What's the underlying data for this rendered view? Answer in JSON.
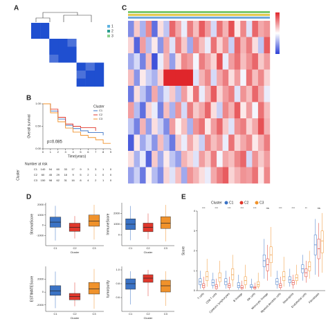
{
  "chart_data": [
    {
      "type": "heatmap",
      "label": "A",
      "zlim": [
        0,
        1
      ],
      "colors": [
        "#ffffff",
        "#ffffff",
        "#1f4fd0"
      ],
      "legend": [
        "1",
        "2",
        "3"
      ],
      "legend_colors": [
        "#5fb3e0",
        "#2a9d8f",
        "#8fd18f"
      ],
      "values": [
        [
          1,
          1,
          0.1,
          0.1,
          0.1,
          0,
          0.1,
          0
        ],
        [
          1,
          1,
          0.1,
          0,
          0.1,
          0.1,
          0,
          0.1
        ],
        [
          0.1,
          0.1,
          1,
          1,
          0.9,
          0.1,
          0,
          0.1
        ],
        [
          0.1,
          0,
          1,
          1,
          1,
          0,
          0.1,
          0
        ],
        [
          0.1,
          0.1,
          0.9,
          1,
          1,
          0.1,
          0.1,
          0.1
        ],
        [
          0,
          0.1,
          0.1,
          0,
          0.1,
          1,
          0.9,
          1
        ],
        [
          0.1,
          0,
          0,
          0.1,
          0.1,
          0.9,
          1,
          1
        ],
        [
          0,
          0.1,
          0.1,
          0,
          0.1,
          1,
          1,
          1
        ]
      ]
    },
    {
      "type": "line",
      "label": "B",
      "ylabel": "Overall survival",
      "xlabel": "Time(years)",
      "annotation": "p=0.085",
      "legend_title": "Cluster",
      "x": [
        0,
        1,
        2,
        3,
        4,
        5,
        6,
        7,
        8,
        9
      ],
      "xlim": [
        0,
        9
      ],
      "xticks": [
        0,
        1,
        2,
        3,
        4,
        5,
        6,
        7,
        8,
        9
      ],
      "ylim": [
        0,
        1
      ],
      "yticks": [
        {
          "value": 0,
          "label": "0.00"
        },
        {
          "value": 0.5,
          "label": "0.50"
        },
        {
          "value": 1,
          "label": "1.00"
        }
      ],
      "series": [
        {
          "name": "C1",
          "color": "#3b73c5",
          "values": [
            1,
            0.84,
            0.66,
            0.52,
            0.45,
            0.4,
            0.36,
            0.36,
            0.3,
            null
          ]
        },
        {
          "name": "C2",
          "color": "#e0372b",
          "values": [
            1,
            0.88,
            0.7,
            0.55,
            0.5,
            0.47,
            0.47,
            0.4,
            null,
            null
          ]
        },
        {
          "name": "C3",
          "color": "#f0922b",
          "values": [
            1,
            0.8,
            0.6,
            0.46,
            0.37,
            0.3,
            0.25,
            0.2,
            0.12,
            0.12
          ]
        }
      ],
      "risk_title": "Number at risk",
      "risk_label": "Cluster",
      "risk": [
        [
          140,
          94,
          60,
          33,
          17,
          9,
          3,
          3,
          1,
          0
        ],
        [
          60,
          45,
          29,
          18,
          9,
          5,
          2,
          1,
          0,
          0
        ],
        [
          150,
          98,
          62,
          31,
          16,
          8,
          4,
          2,
          1,
          0
        ]
      ]
    },
    {
      "type": "heatmap",
      "label": "C",
      "zlim": [
        -2,
        2
      ],
      "colors": [
        "#2b3fd6",
        "#ffffff",
        "#e0262b"
      ],
      "values": [
        [
          -1.2,
          0.5,
          -0.8,
          1.1,
          -1.5,
          0.3,
          -0.6,
          1.4,
          0.8,
          -0.2,
          1.2,
          0.6,
          1.5,
          0.9,
          -0.4,
          1.3,
          0.7,
          1.6,
          0.2,
          1.1,
          -0.3,
          1.4,
          0.8,
          1.0
        ],
        [
          0.4,
          -1.6,
          0.9,
          -0.7,
          0.2,
          -1.1,
          0.8,
          -0.3,
          1.2,
          0.5,
          -0.9,
          1.1,
          0.6,
          -0.2,
          1.3,
          0.4,
          1.0,
          -0.5,
          1.4,
          0.7,
          1.2,
          0.3,
          -0.6,
          1.5
        ],
        [
          -0.9,
          -0.4,
          -1.3,
          0.6,
          -1.8,
          -0.2,
          0.7,
          -1.0,
          0.3,
          1.1,
          0.9,
          -0.1,
          1.2,
          0.8,
          0.4,
          1.6,
          -0.2,
          0.9,
          1.3,
          0.6,
          1.0,
          1.4,
          0.5,
          0.9
        ],
        [
          0.6,
          -1.1,
          0.2,
          -0.5,
          -0.8,
          0.4,
          2.0,
          2.0,
          2.0,
          2.0,
          2.0,
          -0.3,
          0.7,
          1.1,
          -0.4,
          0.8,
          1.2,
          0.3,
          0.9,
          -0.1,
          1.3,
          0.6,
          1.1,
          0.4
        ],
        [
          -1.4,
          0.3,
          -0.6,
          -1.2,
          0.8,
          -0.9,
          -0.3,
          0.5,
          -0.7,
          0.9,
          0.2,
          1.3,
          -0.2,
          0.7,
          1.5,
          0.4,
          0.9,
          1.2,
          -0.3,
          1.0,
          0.6,
          1.4,
          0.8,
          -0.2
        ],
        [
          0.9,
          -0.7,
          -1.5,
          0.4,
          -0.2,
          -1.3,
          0.6,
          -0.8,
          1.0,
          -0.4,
          1.2,
          0.5,
          0.8,
          1.4,
          0.3,
          -0.5,
          1.1,
          0.7,
          1.5,
          0.2,
          0.9,
          -0.1,
          1.3,
          0.6
        ],
        [
          -0.6,
          -1.3,
          0.7,
          -1.0,
          0.3,
          -0.5,
          -1.2,
          0.9,
          0.1,
          0.6,
          -0.8,
          1.0,
          1.3,
          0.2,
          0.9,
          1.4,
          0.5,
          -0.3,
          1.0,
          1.2,
          0.4,
          0.8,
          1.6,
          0.7
        ],
        [
          -1.7,
          0.2,
          -0.9,
          -0.4,
          -1.1,
          0.6,
          -0.7,
          -1.4,
          0.5,
          -0.2,
          0.8,
          0.3,
          -0.5,
          1.1,
          0.6,
          0.9,
          -0.2,
          1.3,
          0.4,
          0.8,
          1.1,
          0.2,
          0.7,
          1.2
        ],
        [
          0.3,
          -0.8,
          -0.2,
          -1.6,
          0.5,
          -0.9,
          0.2,
          -0.6,
          -1.0,
          0.7,
          0.4,
          -0.3,
          0.9,
          0.5,
          1.2,
          -0.1,
          0.8,
          0.6,
          1.1,
          1.4,
          -0.4,
          1.0,
          0.5,
          0.9
        ],
        [
          -1.0,
          -0.5,
          -1.4,
          0.1,
          -0.7,
          -1.2,
          0.4,
          -0.3,
          0.6,
          -0.9,
          1.0,
          0.7,
          0.3,
          -0.2,
          0.8,
          1.2,
          1.5,
          0.4,
          0.7,
          1.0,
          0.9,
          1.3,
          0.2,
          1.1
        ]
      ]
    },
    {
      "type": "box",
      "label": "D",
      "ylabel": "StromalScore",
      "xlabel": "Cluster",
      "categories": [
        "C1",
        "C2",
        "C3"
      ],
      "colors": [
        "#3b73c5",
        "#e0372b",
        "#f0922b"
      ],
      "ylim": [
        -2000,
        2200
      ],
      "yticks": [
        -1000,
        0,
        1000,
        2000
      ],
      "min": [
        -1500,
        -1300,
        -1400
      ],
      "q1": [
        -200,
        -600,
        -100
      ],
      "median": [
        300,
        -200,
        400
      ],
      "q3": [
        800,
        200,
        1000
      ],
      "max": [
        1900,
        900,
        2000
      ]
    },
    {
      "type": "box",
      "ylabel": "ImmuneScore",
      "xlabel": "Cluster",
      "categories": [
        "C1",
        "C2",
        "C3"
      ],
      "colors": [
        "#3b73c5",
        "#e0372b",
        "#f0922b"
      ],
      "ylim": [
        -1000,
        3000
      ],
      "yticks": [
        0,
        1000,
        2000
      ],
      "min": [
        -500,
        -400,
        -600
      ],
      "q1": [
        500,
        300,
        600
      ],
      "median": [
        1000,
        700,
        1100
      ],
      "q3": [
        1500,
        1100,
        1700
      ],
      "max": [
        2700,
        2000,
        2800
      ]
    },
    {
      "type": "box",
      "ylabel": "ESTIMATEScore",
      "xlabel": "Cluster",
      "categories": [
        "C1",
        "C2",
        "C3"
      ],
      "colors": [
        "#3b73c5",
        "#e0372b",
        "#f0922b"
      ],
      "ylim": [
        -3000,
        4000
      ],
      "yticks": [
        -2000,
        0,
        2000
      ],
      "min": [
        -2500,
        -2200,
        -2600
      ],
      "q1": [
        -500,
        -1200,
        -300
      ],
      "median": [
        200,
        -700,
        500
      ],
      "q3": [
        1000,
        -200,
        1500
      ],
      "max": [
        3200,
        1500,
        3600
      ]
    },
    {
      "type": "box",
      "ylabel": "tumorpurity",
      "xlabel": "Cluster",
      "categories": [
        "C1",
        "C2",
        "C3"
      ],
      "colors": [
        "#3b73c5",
        "#e0372b",
        "#f0922b"
      ],
      "ylim": [
        0.4,
        1.05
      ],
      "yticks": [
        0.6,
        0.8,
        {
          "value": 1,
          "label": "1.0"
        }
      ],
      "min": [
        0.5,
        0.62,
        0.48
      ],
      "q1": [
        0.72,
        0.82,
        0.68
      ],
      "median": [
        0.8,
        0.88,
        0.77
      ],
      "q3": [
        0.87,
        0.93,
        0.85
      ],
      "max": [
        0.98,
        1.0,
        0.98
      ]
    },
    {
      "type": "box",
      "label": "E",
      "ylabel": "Score",
      "legend_title": "Cluster",
      "categories": [
        "T cells",
        "CD8 T cells",
        "Cytotoxic lymphocytes",
        "B lineage",
        "NK cells",
        "Monocytic lineage",
        "Myeloid dendritic cells",
        "Neutrophils",
        "Endothelial cells",
        "Fibroblasts"
      ],
      "annotations": [
        "***",
        "***",
        "***",
        "***",
        "***",
        "ns",
        "***",
        "***",
        "**",
        "ns"
      ],
      "ylim": [
        0,
        4
      ],
      "yticks": [
        0,
        1,
        2,
        3,
        4
      ],
      "series": [
        {
          "name": "C1",
          "color": "#3b73c5",
          "min": [
            0.1,
            0.1,
            0.1,
            0.05,
            0.05,
            0.6,
            0.1,
            0.2,
            0.5,
            0.8
          ],
          "q1": [
            0.3,
            0.25,
            0.3,
            0.15,
            0.15,
            1.2,
            0.3,
            0.4,
            0.9,
            1.8
          ],
          "median": [
            0.45,
            0.4,
            0.45,
            0.25,
            0.2,
            1.5,
            0.45,
            0.55,
            1.1,
            2.3
          ],
          "q3": [
            0.6,
            0.55,
            0.6,
            0.4,
            0.3,
            1.8,
            0.6,
            0.7,
            1.3,
            2.8
          ],
          "max": [
            1.0,
            0.9,
            1.0,
            0.8,
            0.6,
            2.6,
            1.0,
            1.1,
            1.8,
            3.6
          ]
        },
        {
          "name": "C2",
          "color": "#e0372b",
          "min": [
            0.05,
            0.05,
            0.05,
            0.05,
            0.05,
            0.5,
            0.05,
            0.1,
            0.4,
            0.7
          ],
          "q1": [
            0.15,
            0.1,
            0.15,
            0.1,
            0.1,
            1.0,
            0.15,
            0.3,
            0.7,
            1.6
          ],
          "median": [
            0.25,
            0.2,
            0.25,
            0.15,
            0.15,
            1.3,
            0.25,
            0.4,
            0.9,
            2.1
          ],
          "q3": [
            0.35,
            0.3,
            0.35,
            0.25,
            0.2,
            1.6,
            0.35,
            0.5,
            1.1,
            2.6
          ],
          "max": [
            0.7,
            0.6,
            0.7,
            0.5,
            0.4,
            2.3,
            0.7,
            0.8,
            1.5,
            3.4
          ]
        },
        {
          "name": "C3",
          "color": "#f0922b",
          "min": [
            0.2,
            0.2,
            0.2,
            0.1,
            0.1,
            0.7,
            0.2,
            0.3,
            0.6,
            0.9
          ],
          "q1": [
            0.5,
            0.45,
            0.55,
            0.3,
            0.2,
            1.4,
            0.5,
            0.5,
            1.0,
            1.9
          ],
          "median": [
            0.7,
            0.65,
            0.8,
            0.5,
            0.3,
            1.8,
            0.7,
            0.65,
            1.2,
            2.5
          ],
          "q3": [
            0.95,
            0.9,
            1.1,
            0.7,
            0.45,
            2.2,
            0.95,
            0.8,
            1.45,
            3.0
          ],
          "max": [
            1.6,
            1.5,
            1.8,
            1.3,
            0.9,
            3.2,
            1.7,
            1.3,
            2.0,
            3.9
          ]
        }
      ]
    }
  ]
}
